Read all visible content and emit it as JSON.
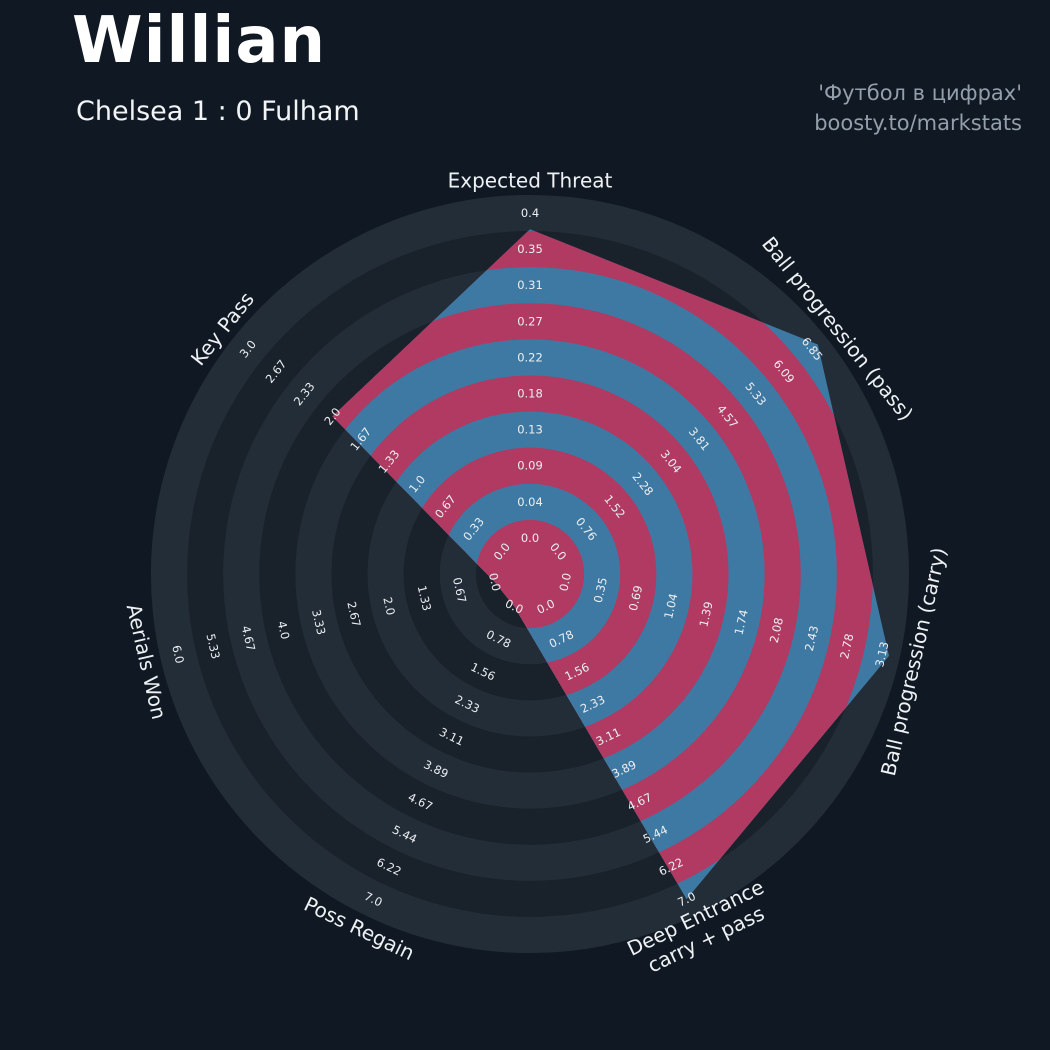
{
  "header": {
    "player": "Willian",
    "match": "Chelsea 1 : 0 Fulham"
  },
  "watermark": {
    "line1": "'Футбол в цифрах'",
    "line2": "boosty.to/markstats"
  },
  "colors": {
    "background": "#101923",
    "ring_dark": "#19212b",
    "ring_light": "#232d38",
    "blue": "#3e79a3",
    "crimson": "#b03a62",
    "tick_text": "#eceff1",
    "title_text": "#eef1f3",
    "watermark": "#939fab"
  },
  "chart_data": {
    "type": "radar",
    "title": "Willian",
    "subtitle": "Chelsea 1 : 0 Fulham",
    "legend_position": "none",
    "grid": "concentric-rings",
    "rings": 10,
    "params": [
      {
        "label": "Expected Threat",
        "ticks": [
          "0.0",
          "0.04",
          "0.09",
          "0.13",
          "0.18",
          "0.22",
          "0.27",
          "0.31",
          "0.35",
          "0.4"
        ],
        "max": 0.4,
        "value": 0.38
      },
      {
        "label": "Ball progression (pass)",
        "ticks": [
          "0.0",
          "0.76",
          "1.52",
          "2.28",
          "3.04",
          "3.81",
          "4.57",
          "5.33",
          "6.09",
          "6.85"
        ],
        "max": 6.85,
        "value": 7.0
      },
      {
        "label": "Ball progression (carry)",
        "ticks": [
          "0.0",
          "0.35",
          "0.69",
          "1.04",
          "1.39",
          "1.74",
          "2.08",
          "2.43",
          "2.78",
          "3.13"
        ],
        "max": 3.13,
        "value": 3.2
      },
      {
        "label": "Deep Entrance\ncarry + pass",
        "ticks": [
          "0.0",
          "0.78",
          "1.56",
          "2.33",
          "3.11",
          "3.89",
          "4.67",
          "5.44",
          "6.22",
          "7.0"
        ],
        "max": 7.0,
        "value": 7.0
      },
      {
        "label": "Poss Regain",
        "ticks": [
          "0.0",
          "0.78",
          "1.56",
          "2.33",
          "3.11",
          "3.89",
          "4.67",
          "5.44",
          "6.22",
          "7.0"
        ],
        "max": 7.0,
        "value": 0.0
      },
      {
        "label": "Aerials Won",
        "ticks": [
          "0.0",
          "0.67",
          "1.33",
          "2.0",
          "2.67",
          "3.33",
          "4.0",
          "4.67",
          "5.33",
          "6.0"
        ],
        "max": 6.0,
        "value": 0.0
      },
      {
        "label": "Key Pass",
        "ticks": [
          "0.0",
          "0.33",
          "0.67",
          "1.0",
          "1.33",
          "1.67",
          "2.0",
          "2.33",
          "2.67",
          "3.0"
        ],
        "max": 3.0,
        "value": 2.0
      }
    ]
  }
}
